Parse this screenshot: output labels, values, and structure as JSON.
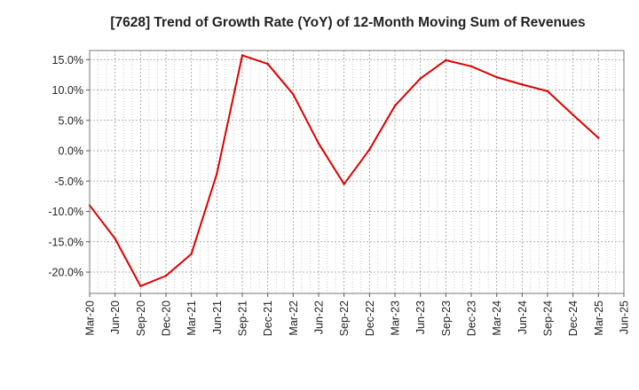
{
  "chart_data": {
    "type": "line",
    "title": "[7628]  Trend of Growth Rate (YoY) of 12-Month Moving Sum of Revenues",
    "xlabel": "",
    "ylabel": "",
    "x_tick_labels": [
      "Mar-20",
      "Jun-20",
      "Sep-20",
      "Dec-20",
      "Mar-21",
      "Jun-21",
      "Sep-21",
      "Dec-21",
      "Mar-22",
      "Jun-22",
      "Sep-22",
      "Dec-22",
      "Mar-23",
      "Jun-23",
      "Sep-23",
      "Dec-23",
      "Mar-24",
      "Jun-24",
      "Sep-24",
      "Dec-24",
      "Mar-25",
      "Jun-25"
    ],
    "y_ticks": [
      15.0,
      10.0,
      5.0,
      0.0,
      -5.0,
      -10.0,
      -15.0,
      -20.0
    ],
    "y_tick_labels": [
      "15.0%",
      "10.0%",
      "5.0%",
      "0.0%",
      "-5.0%",
      "-10.0%",
      "-15.0%",
      "-20.0%"
    ],
    "ylim": [
      -23.5,
      16.5
    ],
    "grid": true,
    "line_color": "#dd0000",
    "series": [
      {
        "x": [
          "Mar-20",
          "Jun-20",
          "Sep-20",
          "Dec-20",
          "Mar-21",
          "Jun-21",
          "Sep-21",
          "Dec-21",
          "Mar-22",
          "Jun-22",
          "Sep-22",
          "Dec-22",
          "Mar-23",
          "Jun-23",
          "Sep-23",
          "Dec-23",
          "Mar-24",
          "Jun-24",
          "Sep-24",
          "Dec-24",
          "Mar-25"
        ],
        "values": [
          -9.0,
          -14.5,
          -22.3,
          -20.6,
          -17.0,
          -3.8,
          15.7,
          14.3,
          9.3,
          1.2,
          -5.5,
          0.2,
          7.4,
          11.9,
          14.9,
          13.9,
          12.1,
          10.9,
          9.8,
          5.9,
          2.1
        ]
      }
    ]
  }
}
